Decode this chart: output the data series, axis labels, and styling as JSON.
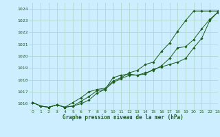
{
  "title": "Graphe pression niveau de la mer (hPa)",
  "bg_color": "#cceeff",
  "grid_color": "#b0d8cc",
  "line_color": "#1a5c1a",
  "marker_color": "#1a5c1a",
  "xlim": [
    -0.5,
    23
  ],
  "ylim": [
    1015.5,
    1024.5
  ],
  "yticks": [
    1016,
    1017,
    1018,
    1019,
    1020,
    1021,
    1022,
    1023,
    1024
  ],
  "xticks": [
    0,
    1,
    2,
    3,
    4,
    5,
    6,
    7,
    8,
    9,
    10,
    11,
    12,
    13,
    14,
    15,
    16,
    17,
    18,
    19,
    20,
    21,
    22,
    23
  ],
  "series": [
    [
      1016.1,
      1015.8,
      1015.7,
      1015.9,
      1015.7,
      1015.8,
      1016.0,
      1016.3,
      1016.9,
      1017.2,
      1018.2,
      1018.4,
      1018.5,
      1018.4,
      1018.5,
      1018.9,
      1019.1,
      1019.3,
      1019.5,
      1019.8,
      1020.7,
      1021.5,
      1023.0,
      1023.7
    ],
    [
      1016.1,
      1015.8,
      1015.7,
      1015.9,
      1015.7,
      1015.8,
      1016.2,
      1016.6,
      1017.1,
      1017.2,
      1017.8,
      1018.1,
      1018.4,
      1018.4,
      1018.6,
      1018.8,
      1019.2,
      1019.8,
      1020.7,
      1020.8,
      1021.4,
      1022.3,
      1023.1,
      1023.7
    ],
    [
      1016.1,
      1015.8,
      1015.7,
      1015.9,
      1015.7,
      1016.1,
      1016.5,
      1017.0,
      1017.2,
      1017.3,
      1017.9,
      1018.2,
      1018.6,
      1018.8,
      1019.3,
      1019.5,
      1020.4,
      1021.1,
      1022.1,
      1023.0,
      1023.8,
      1023.8,
      1023.8,
      1023.8
    ]
  ]
}
